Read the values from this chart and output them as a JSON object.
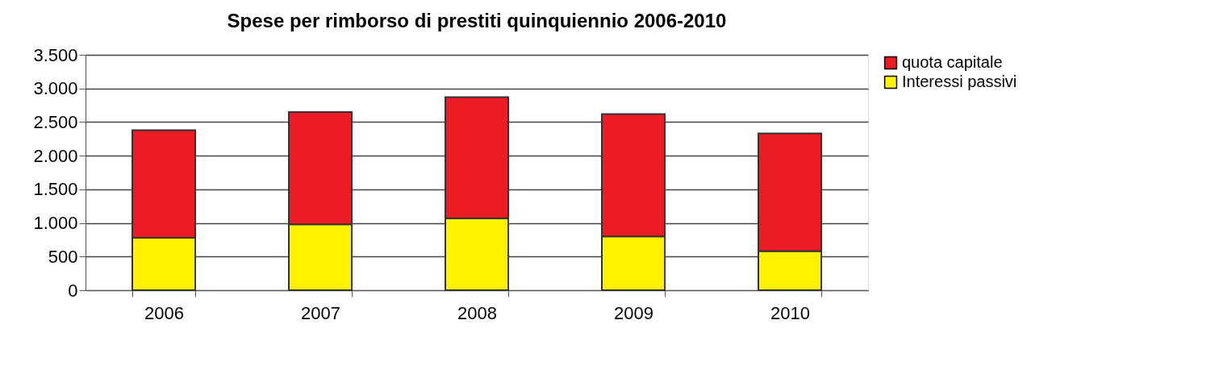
{
  "chart_data": {
    "type": "bar",
    "title": "Spese per rimborso di prestiti quinquiennio 2006-2010",
    "categories": [
      "2006",
      "2007",
      "2008",
      "2009",
      "2010"
    ],
    "stacked": true,
    "series": [
      {
        "name": "Interessi passivi",
        "color": "#fff200",
        "values": [
          780,
          980,
          1070,
          800,
          580
        ]
      },
      {
        "name": "quota capitale",
        "color": "#ed1c24",
        "values": [
          1600,
          1670,
          1800,
          1820,
          1750
        ]
      }
    ],
    "ylim": [
      0,
      3500
    ],
    "yticks": [
      0,
      500,
      {
        "value": 1000,
        "label": "1.000"
      },
      {
        "value": 1500,
        "label": "1.500"
      },
      {
        "value": 2000,
        "label": "2.000"
      },
      {
        "value": 2500,
        "label": "2.500"
      },
      {
        "value": 3000,
        "label": "3.000"
      },
      {
        "value": 3500,
        "label": "3.500"
      }
    ],
    "grid": "y",
    "legend": "right"
  }
}
